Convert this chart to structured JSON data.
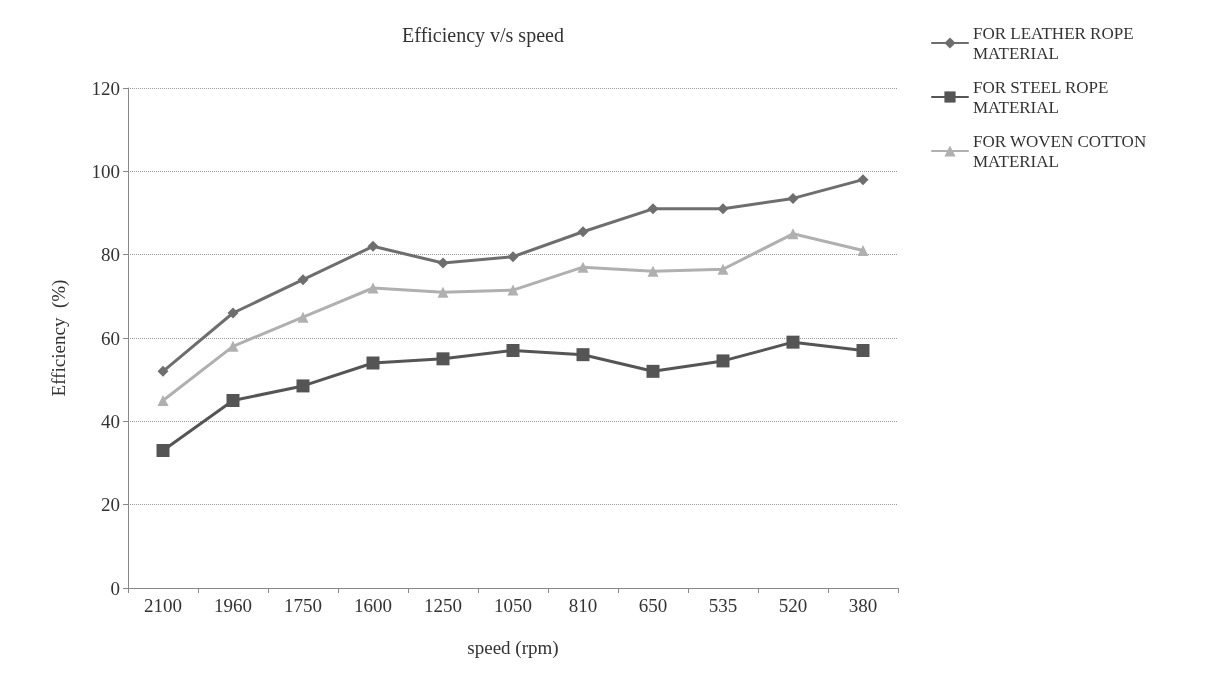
{
  "chart_data": {
    "type": "line",
    "title": "Efficiency v/s speed",
    "xlabel": "speed (rpm)",
    "ylabel": "Efficiency  (%)",
    "categories": [
      "2100",
      "1960",
      "1750",
      "1600",
      "1250",
      "1050",
      "810",
      "650",
      "535",
      "520",
      "380"
    ],
    "series": [
      {
        "name": "FOR LEATHER ROPE MATERIAL",
        "color": "#6e6e6e",
        "marker": "diamond",
        "values": [
          52,
          66,
          74,
          82,
          78,
          79.5,
          85.5,
          91,
          91,
          93.5,
          98
        ]
      },
      {
        "name": "FOR STEEL ROPE MATERIAL",
        "color": "#555555",
        "marker": "square",
        "values": [
          33,
          45,
          48.5,
          54,
          55,
          57,
          56,
          52,
          54.5,
          59,
          57
        ]
      },
      {
        "name": "FOR WOVEN COTTON MATERIAL",
        "color": "#b0b0b0",
        "marker": "triangle",
        "values": [
          45,
          58,
          65,
          72,
          71,
          71.5,
          77,
          76,
          76.5,
          85,
          81
        ]
      }
    ],
    "ylim": [
      0,
      120
    ],
    "yticks": [
      0,
      20,
      40,
      60,
      80,
      100,
      120
    ],
    "grid": "y",
    "legend": "top right",
    "line_style": "solid"
  }
}
